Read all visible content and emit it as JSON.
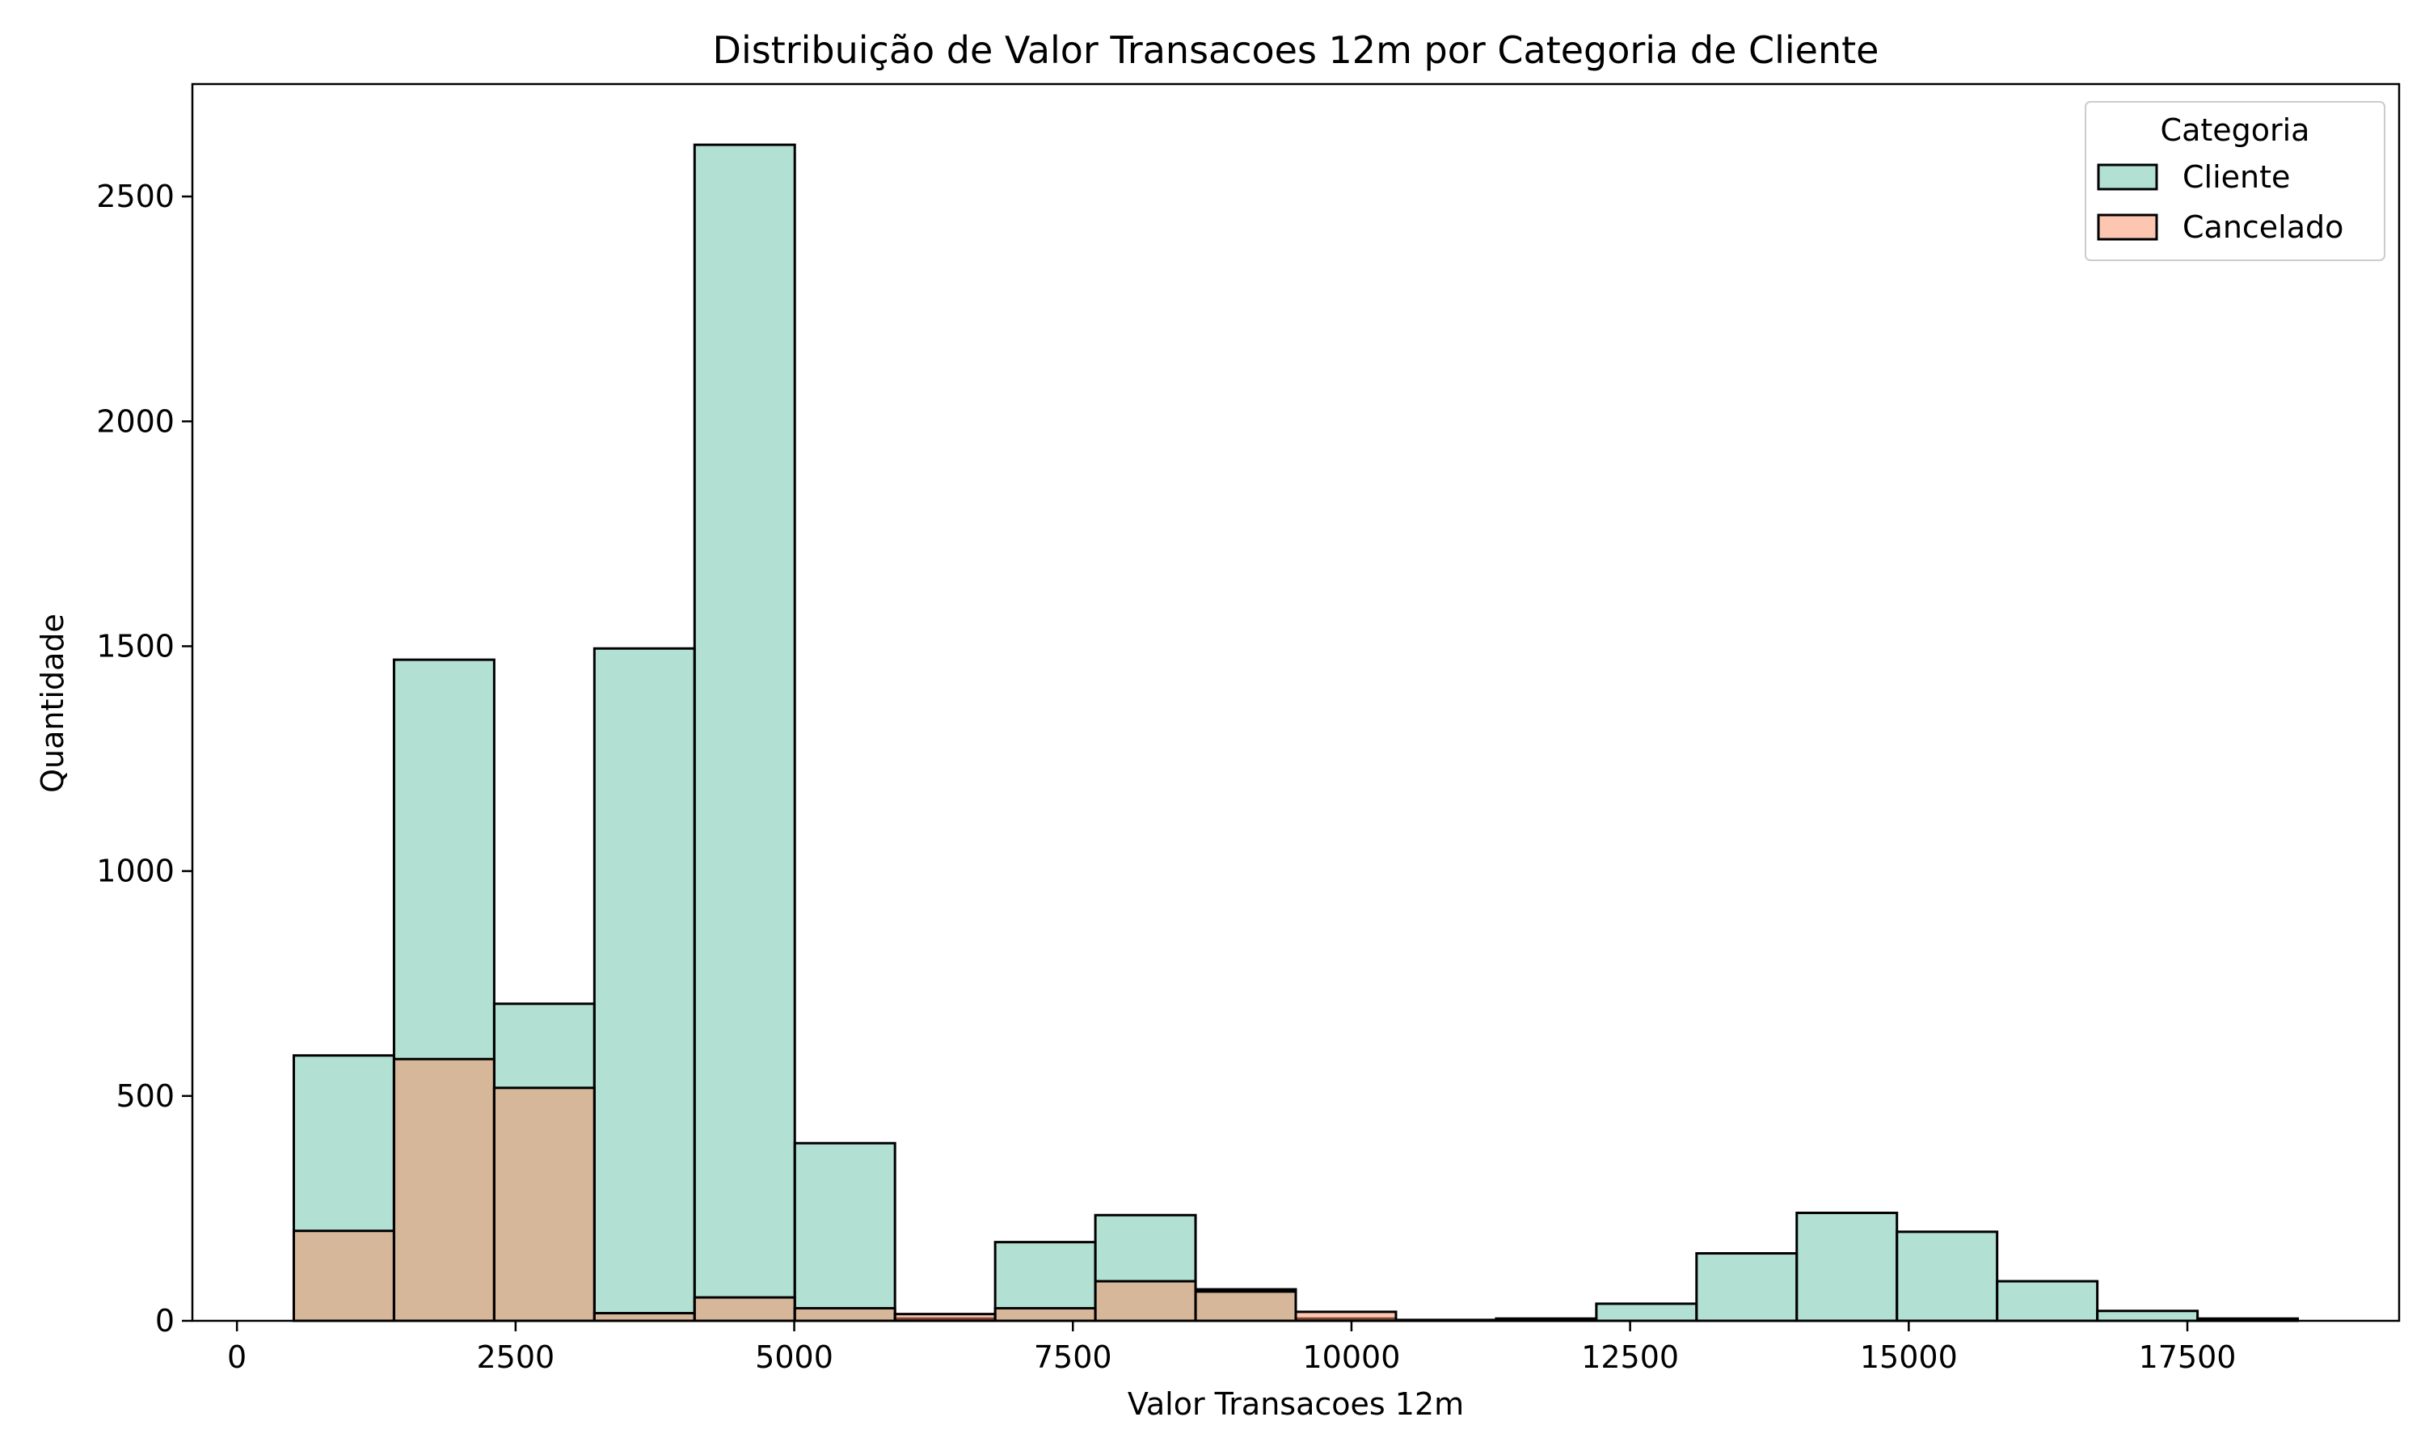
{
  "chart_data": {
    "type": "bar",
    "title": "Distribuição de Valor Transacoes 12m por Categoria de Cliente",
    "xlabel": "Valor Transacoes 12m",
    "ylabel": "Quantidade",
    "xlim": [
      -400,
      19400
    ],
    "ylim": [
      0,
      2750
    ],
    "xticks": [
      0,
      2500,
      5000,
      7500,
      10000,
      12500,
      15000,
      17500
    ],
    "yticks": [
      0,
      500,
      1000,
      1500,
      2000,
      2500
    ],
    "grid": false,
    "legend": {
      "title": "Categoria",
      "placement": "top-right",
      "entries": [
        "Cliente",
        "Cancelado"
      ]
    },
    "bin_edges": [
      510,
      1409,
      2308,
      3207,
      4106,
      5005,
      5904,
      6803,
      7702,
      8601,
      9500,
      10399,
      11298,
      12197,
      13096,
      13995,
      14894,
      15793,
      16692,
      17591,
      18490
    ],
    "series": [
      {
        "name": "Cliente",
        "color": "#66c2a5",
        "values": [
          590,
          1470,
          705,
          1495,
          2615,
          395,
          5,
          175,
          235,
          70,
          5,
          2,
          5,
          38,
          150,
          240,
          198,
          88,
          22,
          5
        ]
      },
      {
        "name": "Cancelado",
        "color": "#fc8d62",
        "values": [
          200,
          582,
          518,
          17,
          52,
          28,
          15,
          28,
          88,
          65,
          20,
          0,
          0,
          0,
          0,
          0,
          0,
          0,
          0,
          0
        ]
      }
    ]
  }
}
